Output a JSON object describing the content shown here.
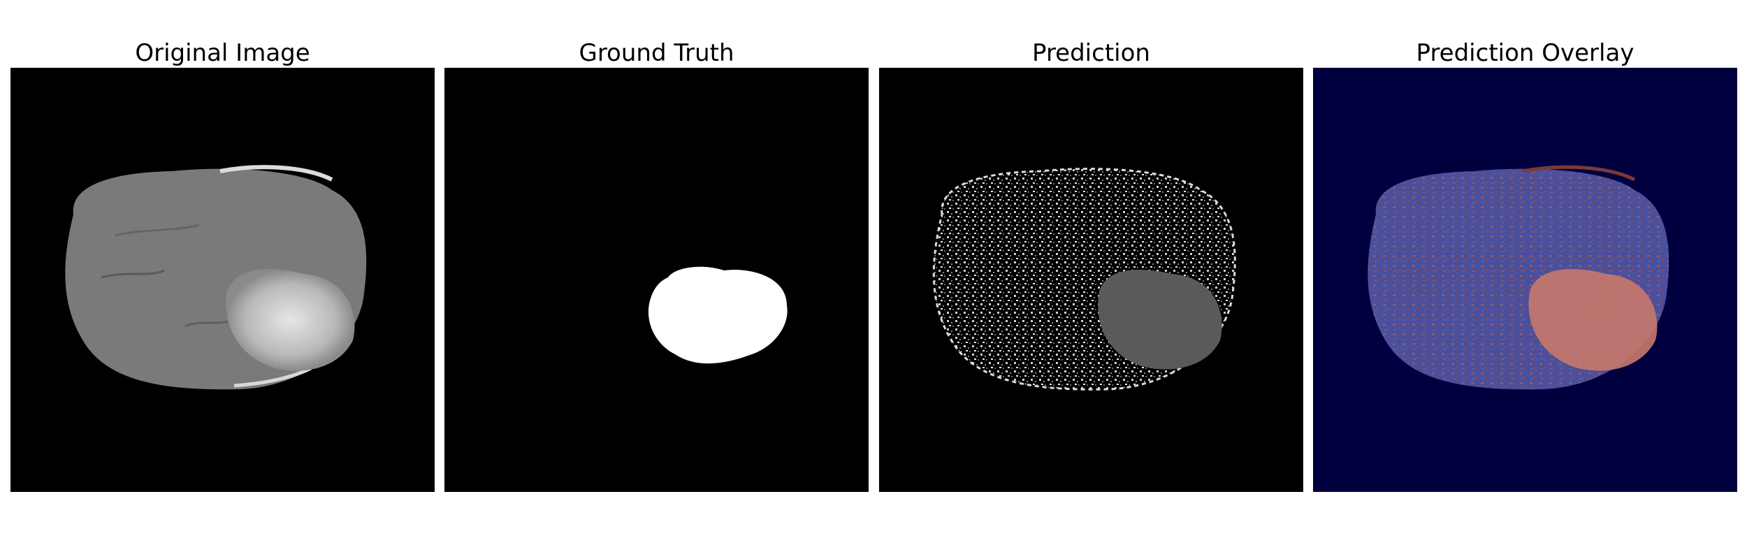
{
  "panels": [
    {
      "id": "original",
      "title": "Original Image"
    },
    {
      "id": "ground_truth",
      "title": "Ground Truth"
    },
    {
      "id": "prediction",
      "title": "Prediction"
    },
    {
      "id": "overlay",
      "title": "Prediction Overlay"
    }
  ],
  "colors": {
    "background": "#000000",
    "overlay_background": "#00003f",
    "mask": "#ffffff",
    "overlay_brain": "#4a4f9e",
    "overlay_tumor": "#c9786a"
  }
}
